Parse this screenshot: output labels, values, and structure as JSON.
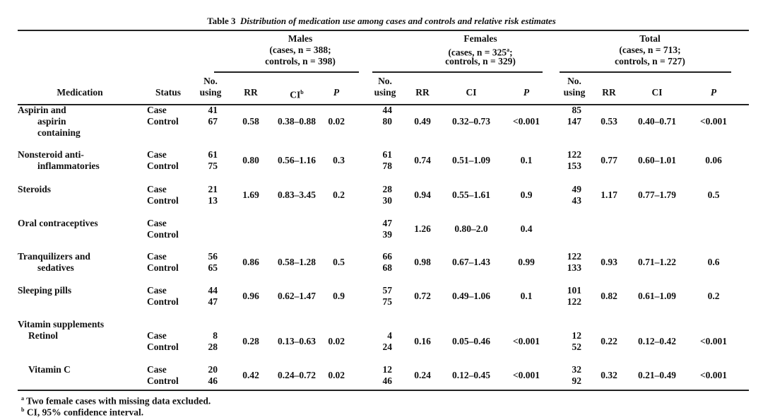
{
  "table": {
    "label": "Table 3",
    "caption": "Distribution of medication use among cases and controls and relative risk estimates",
    "groups": [
      {
        "name": "Males",
        "line1": "(cases, n = 388;",
        "line2": "controls, n = 398)"
      },
      {
        "name": "Females",
        "line1": "(cases, n = 325",
        "line1_sup": "a",
        "line1_end": ";",
        "line2": "controls, n = 329)"
      },
      {
        "name": "Total",
        "line1": "(cases, n = 713;",
        "line2": "controls, n = 727)"
      }
    ],
    "headers": {
      "medication": "Medication",
      "status": "Status",
      "no_using_1": "No.",
      "no_using_2": "using",
      "rr": "RR",
      "ci": "CI",
      "ci_sup": "b",
      "p": "P"
    },
    "rows": [
      {
        "medication": [
          "Aspirin and",
          "aspirin",
          "containing"
        ],
        "status": [
          "Case",
          "Control"
        ],
        "males": {
          "no": [
            "41",
            "67"
          ],
          "rr": "0.58",
          "ci": "0.38–0.88",
          "p": "0.02"
        },
        "females": {
          "no": [
            "44",
            "80"
          ],
          "rr": "0.49",
          "ci": "0.32–0.73",
          "p": "<0.001"
        },
        "total": {
          "no": [
            "85",
            "147"
          ],
          "rr": "0.53",
          "ci": "0.40–0.71",
          "p": "<0.001"
        }
      },
      {
        "medication": [
          "Nonsteroid anti-",
          "inflammatories"
        ],
        "status": [
          "Case",
          "Control"
        ],
        "males": {
          "no": [
            "61",
            "75"
          ],
          "rr": "0.80",
          "ci": "0.56–1.16",
          "p": "0.3"
        },
        "females": {
          "no": [
            "61",
            "78"
          ],
          "rr": "0.74",
          "ci": "0.51–1.09",
          "p": "0.1"
        },
        "total": {
          "no": [
            "122",
            "153"
          ],
          "rr": "0.77",
          "ci": "0.60–1.01",
          "p": "0.06"
        }
      },
      {
        "medication": [
          "Steroids"
        ],
        "status": [
          "Case",
          "Control"
        ],
        "males": {
          "no": [
            "21",
            "13"
          ],
          "rr": "1.69",
          "ci": "0.83–3.45",
          "p": "0.2"
        },
        "females": {
          "no": [
            "28",
            "30"
          ],
          "rr": "0.94",
          "ci": "0.55–1.61",
          "p": "0.9"
        },
        "total": {
          "no": [
            "49",
            "43"
          ],
          "rr": "1.17",
          "ci": "0.77–1.79",
          "p": "0.5"
        }
      },
      {
        "medication": [
          "Oral contraceptives"
        ],
        "status": [
          "Case",
          "Control"
        ],
        "females": {
          "no": [
            "47",
            "39"
          ],
          "rr": "1.26",
          "ci": "0.80–2.0",
          "p": "0.4"
        }
      },
      {
        "medication": [
          "Tranquilizers and",
          "sedatives"
        ],
        "status": [
          "Case",
          "Control"
        ],
        "males": {
          "no": [
            "56",
            "65"
          ],
          "rr": "0.86",
          "ci": "0.58–1.28",
          "p": "0.5"
        },
        "females": {
          "no": [
            "66",
            "68"
          ],
          "rr": "0.98",
          "ci": "0.67–1.43",
          "p": "0.99"
        },
        "total": {
          "no": [
            "122",
            "133"
          ],
          "rr": "0.93",
          "ci": "0.71–1.22",
          "p": "0.6"
        }
      },
      {
        "medication": [
          "Sleeping pills"
        ],
        "status": [
          "Case",
          "Control"
        ],
        "males": {
          "no": [
            "44",
            "47"
          ],
          "rr": "0.96",
          "ci": "0.62–1.47",
          "p": "0.9"
        },
        "females": {
          "no": [
            "57",
            "75"
          ],
          "rr": "0.72",
          "ci": "0.49–1.06",
          "p": "0.1"
        },
        "total": {
          "no": [
            "101",
            "122"
          ],
          "rr": "0.82",
          "ci": "0.61–1.09",
          "p": "0.2"
        }
      },
      {
        "medication": [
          "Vitamin supplements"
        ]
      },
      {
        "medication": [
          "Retinol"
        ],
        "sub": true,
        "status": [
          "Case",
          "Control"
        ],
        "males": {
          "no": [
            "8",
            "28"
          ],
          "rr": "0.28",
          "ci": "0.13–0.63",
          "p": "0.02"
        },
        "females": {
          "no": [
            "4",
            "24"
          ],
          "rr": "0.16",
          "ci": "0.05–0.46",
          "p": "<0.001"
        },
        "total": {
          "no": [
            "12",
            "52"
          ],
          "rr": "0.22",
          "ci": "0.12–0.42",
          "p": "<0.001"
        }
      },
      {
        "medication": [
          "Vitamin C"
        ],
        "sub": true,
        "status": [
          "Case",
          "Control"
        ],
        "males": {
          "no": [
            "20",
            "46"
          ],
          "rr": "0.42",
          "ci": "0.24–0.72",
          "p": "0.02"
        },
        "females": {
          "no": [
            "12",
            "46"
          ],
          "rr": "0.24",
          "ci": "0.12–0.45",
          "p": "<0.001"
        },
        "total": {
          "no": [
            "32",
            "92"
          ],
          "rr": "0.32",
          "ci": "0.21–0.49",
          "p": "<0.001"
        }
      }
    ],
    "footnotes": [
      {
        "mark": "a",
        "text": "Two female cases with missing data excluded."
      },
      {
        "mark": "b",
        "text": "CI, 95% confidence interval."
      }
    ]
  }
}
